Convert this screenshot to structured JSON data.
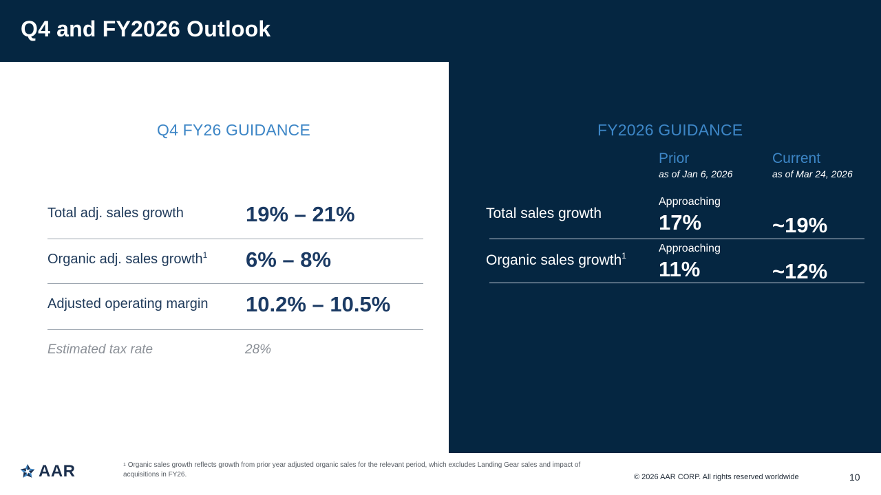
{
  "header": {
    "title": "Q4 and FY2026 Outlook"
  },
  "q4": {
    "heading": "Q4 FY26 GUIDANCE",
    "rows": [
      {
        "label": "Total adj. sales growth",
        "sup": "",
        "value": "19% – 21%"
      },
      {
        "label": "Organic adj. sales growth",
        "sup": "1",
        "value": "6% – 8%"
      },
      {
        "label": "Adjusted operating margin",
        "sup": "",
        "value": "10.2% – 10.5%"
      }
    ],
    "tax": {
      "label": "Estimated tax rate",
      "value": "28%"
    }
  },
  "fy": {
    "heading": "FY2026 GUIDANCE",
    "prior": {
      "label": "Prior",
      "date": "as of Jan 6, 2026"
    },
    "current": {
      "label": "Current",
      "date": "as of Mar 24, 2026"
    },
    "rows": [
      {
        "label": "Total sales growth",
        "sup": "",
        "prior_qualifier": "Approaching",
        "prior_value": "17%",
        "current_value": "~19%"
      },
      {
        "label": "Organic sales growth",
        "sup": "1",
        "prior_qualifier": "Approaching",
        "prior_value": "11%",
        "current_value": "~12%"
      }
    ]
  },
  "footer": {
    "footnote_sup": "1",
    "footnote": "Organic sales growth reflects growth from prior year adjusted organic sales for the relevant period, which excludes Landing Gear sales and impact of acquisitions in FY26.",
    "copyright": "© 2026 AAR CORP. All rights reserved worldwide",
    "page_number": "10",
    "logo_text": "AAR"
  },
  "colors": {
    "navy": "#052641",
    "accent": "#3d86c6",
    "value": "#1b3a63"
  }
}
